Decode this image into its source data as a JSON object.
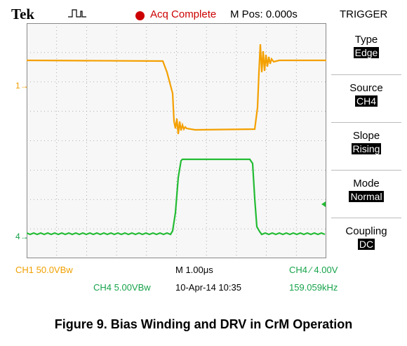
{
  "header": {
    "brand": "Tek",
    "trigger_icon": "pulse-trigger-icon",
    "status": "Acq Complete",
    "position": "M Pos: 0.000s"
  },
  "menu": {
    "title": "TRIGGER",
    "items": [
      {
        "label": "Type",
        "value": "Edge"
      },
      {
        "label": "Source",
        "value": "CH4"
      },
      {
        "label": "Slope",
        "value": "Rising"
      },
      {
        "label": "Mode",
        "value": "Normal"
      },
      {
        "label": "Coupling",
        "value": "DC"
      }
    ]
  },
  "readout": {
    "ch1": "CH1  50.0VBᴡ",
    "ch4": "CH4  5.00VBᴡ",
    "time": "M 1.00μs",
    "date": "10-Apr-14 10:35",
    "trig": "CH4 ∕ 4.00V",
    "freq": "159.059kHz"
  },
  "markers": {
    "ch1": "1→",
    "ch4": "4→"
  },
  "caption": "Figure 9. Bias Winding and DRV in CrM Operation",
  "colors": {
    "ch1": "#f4a000",
    "ch4": "#22bb33",
    "status": "#cc0000"
  }
}
